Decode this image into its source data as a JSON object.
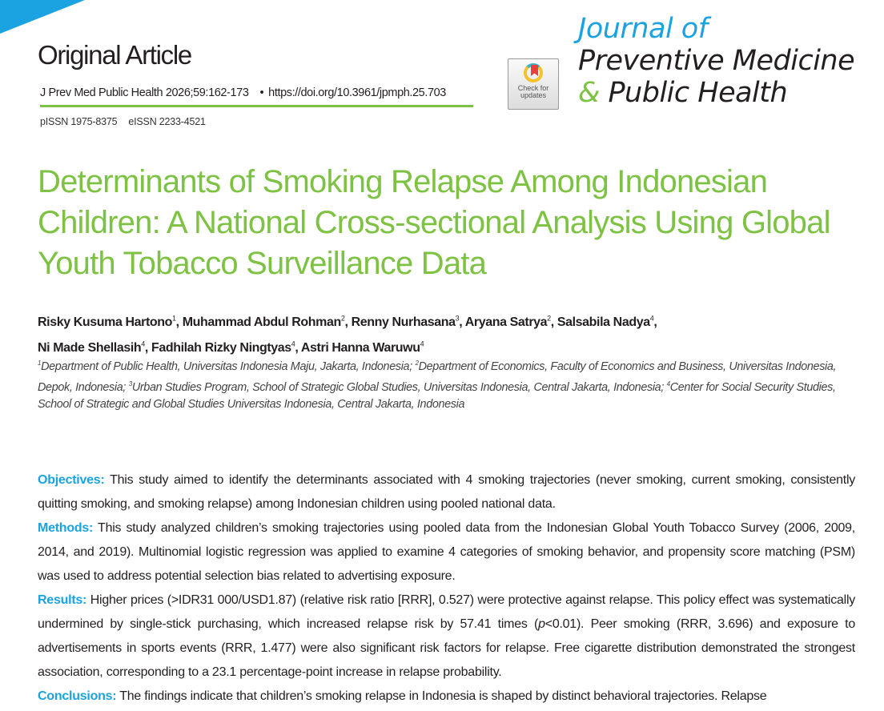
{
  "header": {
    "article_type": "Original Article",
    "citation": "J Prev Med Public Health 2026;59:162-173",
    "bullet": "•",
    "doi": "https://doi.org/10.3961/jpmph.25.703",
    "pissn": "pISSN 1975-8375",
    "eissn": "eISSN 2233-4521",
    "check_updates": "Check for updates",
    "journal_line1": "Journal of",
    "journal_line2": "Preventive Medicine",
    "journal_amp": "&",
    "journal_line3": "Public Health",
    "colors": {
      "accent_blue": "#1aa3e0",
      "accent_green": "#7dc242"
    }
  },
  "title": "Determinants of Smoking Relapse Among Indonesian Children: A National Cross-sectional Analysis Using Global Youth Tobacco Surveillance Data",
  "authors": [
    {
      "name": "Risky Kusuma Hartono",
      "aff": "1"
    },
    {
      "name": "Muhammad Abdul Rohman",
      "aff": "2"
    },
    {
      "name": "Renny Nurhasana",
      "aff": "3"
    },
    {
      "name": "Aryana Satrya",
      "aff": "2"
    },
    {
      "name": "Salsabila Nadya",
      "aff": "4"
    },
    {
      "name": "Ni Made Shellasih",
      "aff": "4"
    },
    {
      "name": "Fadhilah Rizky Ningtyas",
      "aff": "4"
    },
    {
      "name": "Astri Hanna Waruwu",
      "aff": "4"
    }
  ],
  "affiliations": [
    {
      "num": "1",
      "text": "Department of Public Health, Universitas Indonesia Maju, Jakarta, Indonesia; "
    },
    {
      "num": "2",
      "text": "Department of Economics, Faculty of Economics and Business, Universitas Indonesia, Depok, Indonesia; "
    },
    {
      "num": "3",
      "text": "Urban Studies Program, School of Strategic Global Studies, Universitas Indonesia, Central Jakarta, Indonesia; "
    },
    {
      "num": "4",
      "text": "Center for Social Security Studies, School of Strategic and Global Studies Universitas Indonesia, Central Jakarta, Indonesia"
    }
  ],
  "abstract": {
    "objectives_label": "Objectives:",
    "objectives": " This study aimed to identify the determinants associated with 4 smoking trajectories (never smoking, current smoking, consistently quitting smoking, and smoking relapse) among Indonesian children using pooled national data.",
    "methods_label": "Methods:",
    "methods": " This study analyzed children’s smoking trajectories using pooled data from the Indonesian Global Youth Tobacco Survey (2006, 2009, 2014, and 2019). Multinomial logistic regression was applied to examine 4 categories of smoking behavior, and propensity score matching (PSM) was used to address potential selection bias related to advertising exposure.",
    "results_label": "Results:",
    "results_a": " Higher prices (>IDR31 000/USD1.87) (relative risk ratio [RRR], 0.527) were protective against relapse. This policy effect was systematically undermined by single-stick purchasing, which increased relapse risk by 57.41 times (",
    "results_p": "p",
    "results_b": "<0.01). Peer smoking (RRR, 3.696) and exposure to advertisements in sports events (RRR, 1.477) were also significant risk factors for relapse. Free cigarette distribution demonstrated the strongest association, corresponding to a 23.1 percentage-point increase in relapse probability.",
    "conclusions_label": "Conclusions:",
    "conclusions": " The findings indicate that children’s smoking relapse in Indonesia is shaped by distinct behavioral trajectories. Relapse"
  }
}
